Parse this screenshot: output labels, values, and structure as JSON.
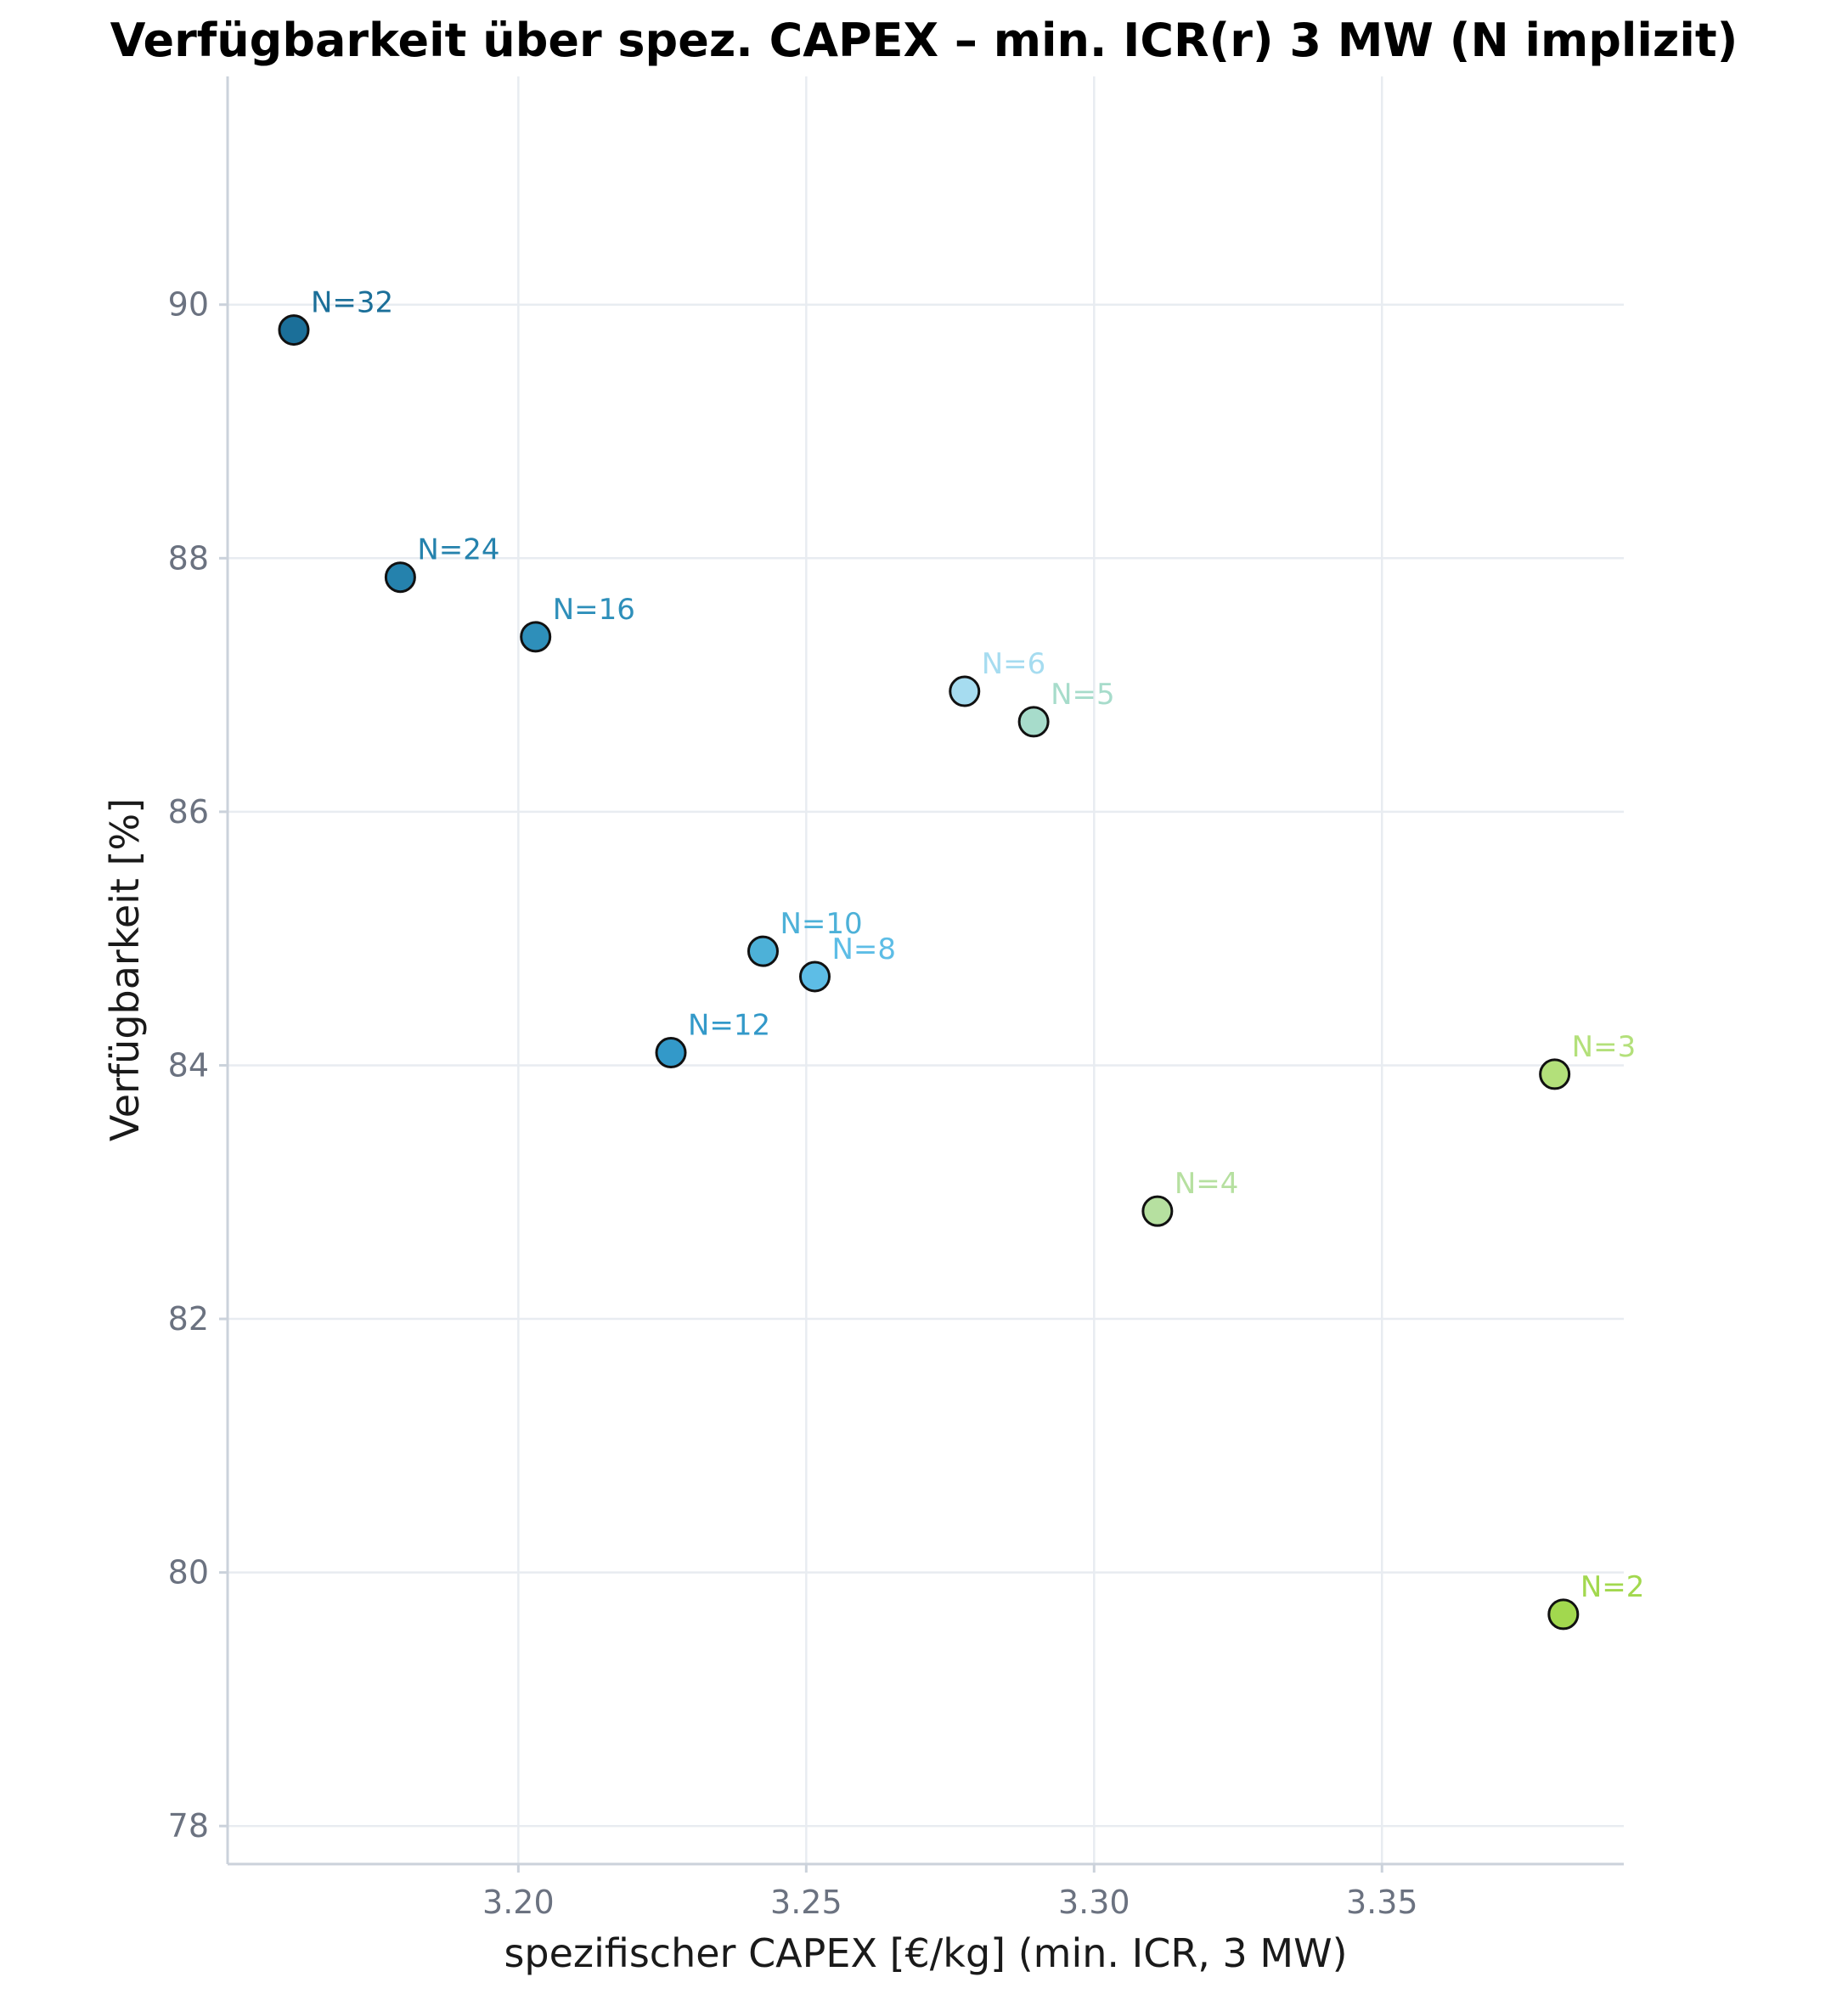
{
  "chart_data": {
    "type": "scatter",
    "title": "Verfügbarkeit über spez. CAPEX – min. ICR(r) 3 MW (N implizit)",
    "xlabel": "spezifischer CAPEX [€/kg] (min. ICR, 3 MW)",
    "ylabel": "Verfügbarkeit [%]",
    "xlim": [
      3.1495,
      3.392
    ],
    "ylim": [
      77.7,
      91.8
    ],
    "xticks": [
      3.2,
      3.25,
      3.3,
      3.35
    ],
    "xtick_labels": [
      "3.20",
      "3.25",
      "3.30",
      "3.35"
    ],
    "yticks": [
      78,
      80,
      82,
      84,
      86,
      88,
      90
    ],
    "ytick_labels": [
      "78",
      "80",
      "82",
      "84",
      "86",
      "88",
      "90"
    ],
    "grid": true,
    "points": [
      {
        "label": "N=32",
        "x": 3.161,
        "y": 89.8,
        "color": "#1b6f99"
      },
      {
        "label": "N=24",
        "x": 3.1795,
        "y": 87.85,
        "color": "#2582ad"
      },
      {
        "label": "N=16",
        "x": 3.203,
        "y": 87.38,
        "color": "#2e8fba"
      },
      {
        "label": "N=12",
        "x": 3.2265,
        "y": 84.1,
        "color": "#3399c9"
      },
      {
        "label": "N=10",
        "x": 3.2425,
        "y": 84.9,
        "color": "#4db1d8"
      },
      {
        "label": "N=8",
        "x": 3.2515,
        "y": 84.7,
        "color": "#5dbde6"
      },
      {
        "label": "N=6",
        "x": 3.2775,
        "y": 86.95,
        "color": "#a6dcf0"
      },
      {
        "label": "N=5",
        "x": 3.2895,
        "y": 86.71,
        "color": "#a7dccb"
      },
      {
        "label": "N=4",
        "x": 3.311,
        "y": 82.85,
        "color": "#b6e0a0"
      },
      {
        "label": "N=3",
        "x": 3.38,
        "y": 83.93,
        "color": "#b3e07a"
      },
      {
        "label": "N=2",
        "x": 3.3815,
        "y": 79.67,
        "color": "#a2d84e"
      }
    ]
  }
}
